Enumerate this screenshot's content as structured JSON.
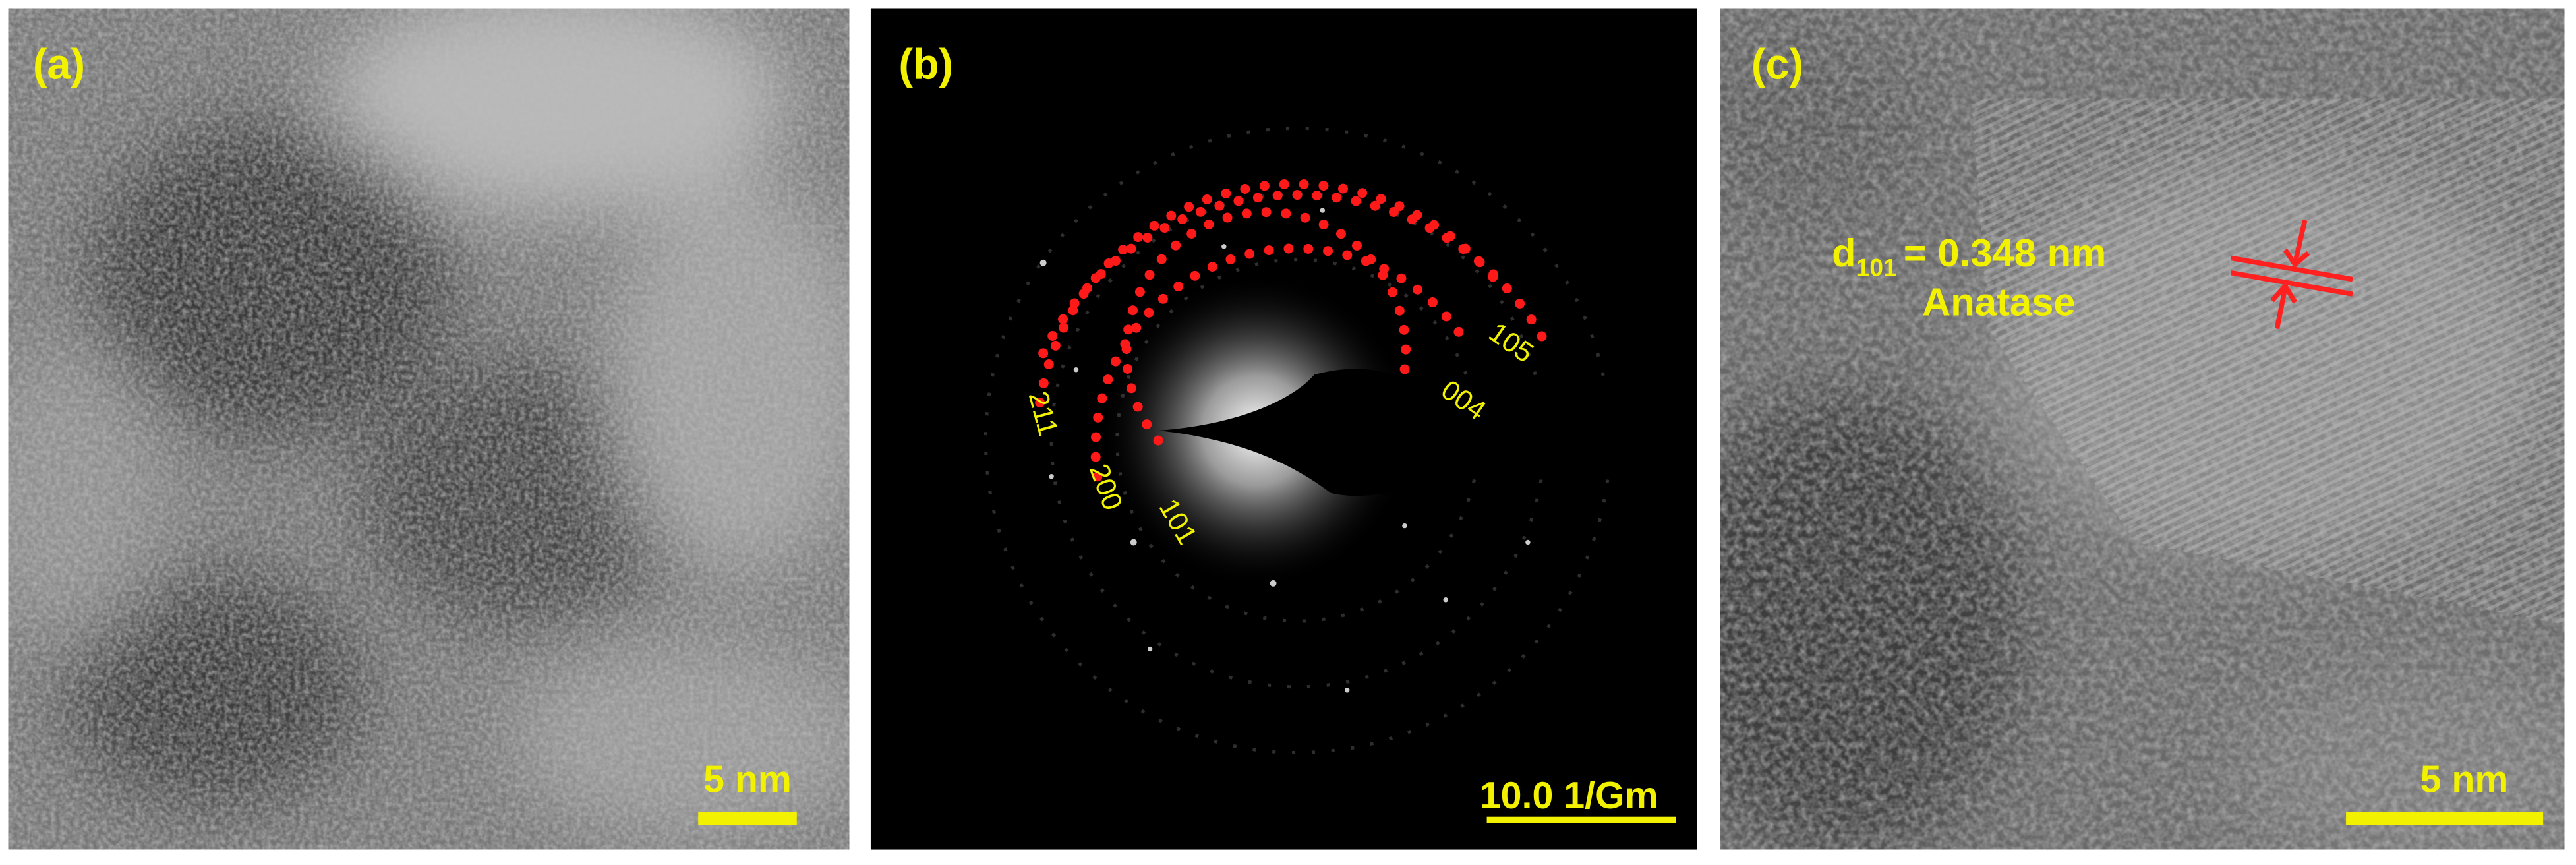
{
  "panels": [
    {
      "label": "(a)",
      "scale_bar": "5 nm"
    },
    {
      "label": "(b)",
      "scale_bar": "10.0 1/Gm",
      "rings": [
        "101",
        "200",
        "211",
        "004",
        "105"
      ]
    },
    {
      "label": "(c)",
      "scale_bar": "5 nm",
      "spacing_symbol": "d",
      "spacing_index": "101",
      "spacing_value": "= 0.348 nm",
      "phase": "Anatase"
    }
  ]
}
